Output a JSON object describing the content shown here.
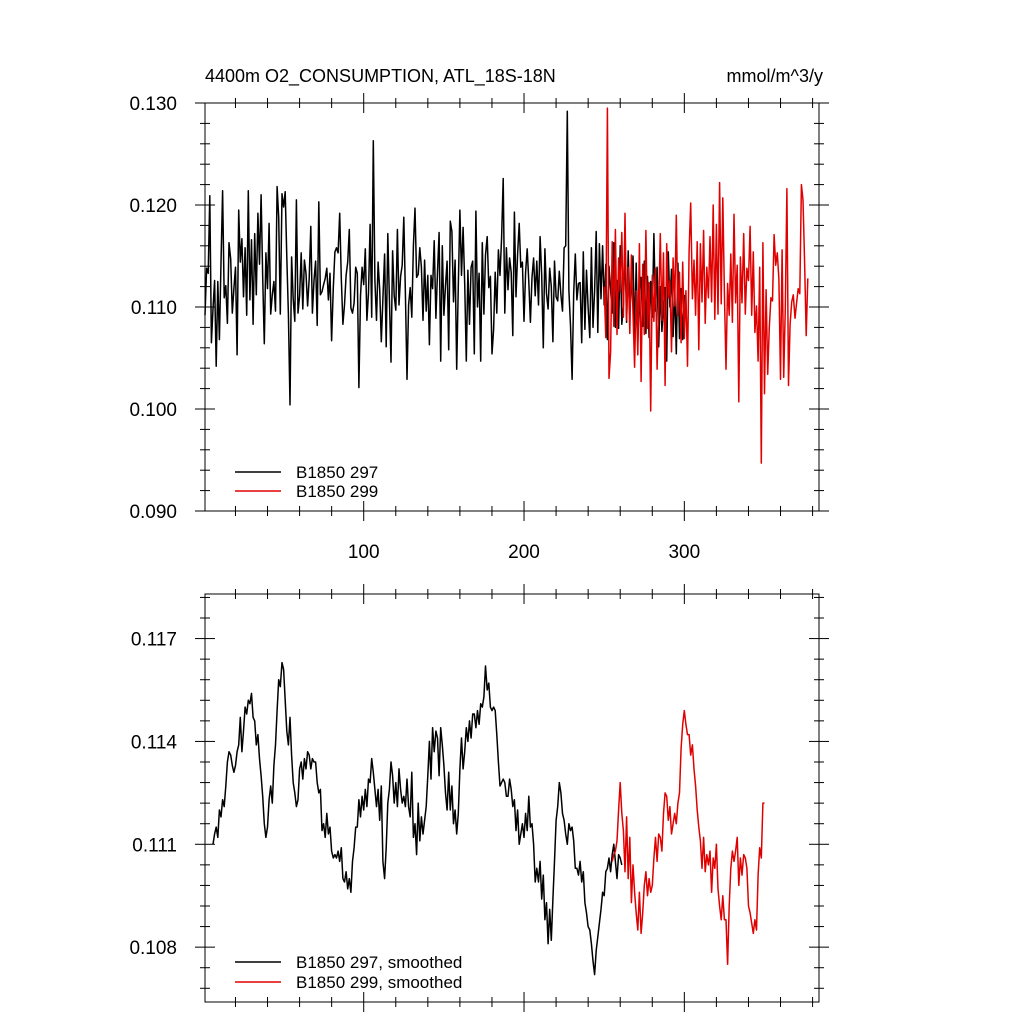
{
  "colors": {
    "series_a": "#000000",
    "series_b": "#e00000",
    "frame": "#000000"
  },
  "chart_data": [
    {
      "type": "line",
      "title": "4400m O2_CONSUMPTION, ATL_18S-18N",
      "units": "mmol/m^3/y",
      "xlabel": "",
      "ylabel": "",
      "xlim": [
        1,
        384
      ],
      "ylim": [
        0.09,
        0.13
      ],
      "xticks": [
        100,
        200,
        300
      ],
      "xtick_labels": [
        "100",
        "200",
        "300"
      ],
      "yticks": [
        0.09,
        0.1,
        0.11,
        0.12,
        0.13
      ],
      "ytick_labels": [
        "0.090",
        "0.100",
        "0.110",
        "0.120",
        "0.130"
      ],
      "grid": false,
      "legend_position": "bottom-left",
      "series": [
        {
          "name": "B1850 297",
          "x_start": 1,
          "x_step": 1,
          "values": [
            0.1092,
            0.1138,
            0.1133,
            0.1209,
            0.1065,
            0.1098,
            0.1126,
            0.1042,
            0.1125,
            0.1068,
            0.1143,
            0.1214,
            0.1109,
            0.1121,
            0.1084,
            0.1163,
            0.1147,
            0.1094,
            0.1118,
            0.1139,
            0.1053,
            0.1195,
            0.1144,
            0.1167,
            0.111,
            0.1158,
            0.1092,
            0.1214,
            0.1107,
            0.1166,
            0.1083,
            0.1172,
            0.1112,
            0.1192,
            0.1142,
            0.121,
            0.1129,
            0.1064,
            0.1153,
            0.1118,
            0.1182,
            0.1093,
            0.1112,
            0.1125,
            0.1096,
            0.1218,
            0.1188,
            0.1093,
            0.1211,
            0.1198,
            0.1213,
            0.1149,
            0.1093,
            0.1004,
            0.1149,
            0.1108,
            0.1086,
            0.1205,
            0.1094,
            0.1111,
            0.1153,
            0.1098,
            0.1146,
            0.1133,
            0.1101,
            0.1128,
            0.1179,
            0.1094,
            0.1126,
            0.1145,
            0.1082,
            0.1203,
            0.1112,
            0.1115,
            0.1122,
            0.1128,
            0.1138,
            0.1107,
            0.1133,
            0.1067,
            0.1119,
            0.1154,
            0.1158,
            0.1153,
            0.1192,
            0.1128,
            0.1083,
            0.1102,
            0.1131,
            0.1144,
            0.1176,
            0.1099,
            0.1094,
            0.1104,
            0.1139,
            0.1133,
            0.1021,
            0.1111,
            0.1139,
            0.1122,
            0.1157,
            0.1087,
            0.1114,
            0.1181,
            0.109,
            0.1263,
            0.1126,
            0.1087,
            0.1144,
            0.1117,
            0.1066,
            0.1108,
            0.1152,
            0.1061,
            0.1172,
            0.1108,
            0.1046,
            0.1155,
            0.1111,
            0.1097,
            0.1176,
            0.1102,
            0.113,
            0.1141,
            0.1188,
            0.1113,
            0.1029,
            0.1102,
            0.1119,
            0.109,
            0.116,
            0.1197,
            0.1129,
            0.1132,
            0.1158,
            0.1139,
            0.1087,
            0.1146,
            0.1096,
            0.1131,
            0.1063,
            0.1131,
            0.1118,
            0.1165,
            0.1089,
            0.1134,
            0.1173,
            0.1047,
            0.116,
            0.1092,
            0.1121,
            0.1145,
            0.1058,
            0.1184,
            0.1174,
            0.1105,
            0.1146,
            0.1039,
            0.1121,
            0.1195,
            0.1131,
            0.1178,
            0.1123,
            0.1047,
            0.1136,
            0.1083,
            0.1139,
            0.1145,
            0.1054,
            0.1194,
            0.11,
            0.1133,
            0.1047,
            0.1163,
            0.1093,
            0.1151,
            0.1169,
            0.1119,
            0.113,
            0.1054,
            0.1078,
            0.1134,
            0.1094,
            0.1156,
            0.1131,
            0.1168,
            0.1226,
            0.1094,
            0.1158,
            0.1117,
            0.1148,
            0.1134,
            0.1072,
            0.1193,
            0.111,
            0.1152,
            0.1182,
            0.1139,
            0.1144,
            0.1086,
            0.1134,
            0.1157,
            0.1125,
            0.1085,
            0.1129,
            0.1148,
            0.1111,
            0.1145,
            0.1102,
            0.1169,
            0.1131,
            0.106,
            0.1157,
            0.1113,
            0.1098,
            0.1138,
            0.112,
            0.1066,
            0.1145,
            0.111,
            0.1106,
            0.1135,
            0.1112,
            0.1096,
            0.1158,
            0.116,
            0.1292,
            0.1116,
            0.1082,
            0.1029,
            0.1114,
            0.1152,
            0.1107,
            0.1123,
            0.1124,
            0.1065,
            0.1154,
            0.1078,
            0.1136,
            0.11,
            0.107,
            0.1158,
            0.108,
            0.1116,
            0.1174,
            0.1075,
            0.1162,
            0.1108,
            0.116,
            0.1102,
            0.1142,
            0.1068,
            0.114,
            0.1117,
            0.1094,
            0.1163,
            0.108,
            0.1126,
            0.1079,
            0.116,
            0.1083,
            0.1102,
            0.1157,
            0.1085,
            0.1155,
            0.11,
            0.1116,
            0.115,
            0.1071,
            0.1143,
            0.1065,
            0.1114,
            0.1129,
            0.1081,
            0.1145,
            0.1074,
            0.113,
            0.107,
            0.1125,
            0.109,
            0.1172,
            0.1096,
            0.1139,
            0.1061,
            0.112,
            0.1076,
            0.1102,
            0.1119,
            0.1047,
            0.1154,
            0.11,
            0.1137,
            0.1071,
            0.1119,
            0.1054,
            0.1143,
            0.1069,
            0.1118,
            0.1068,
            0.1112
          ]
        },
        {
          "name": "B1850 299",
          "x_start": 250,
          "x_step": 1,
          "values": [
            0.112,
            0.107,
            0.1295,
            0.103,
            0.1056,
            0.1164,
            0.1081,
            0.1176,
            0.1073,
            0.1148,
            0.1115,
            0.1173,
            0.109,
            0.1192,
            0.1087,
            0.1139,
            0.1074,
            0.1151,
            0.1094,
            0.1041,
            0.1116,
            0.1053,
            0.1162,
            0.1027,
            0.1142,
            0.1073,
            0.1175,
            0.1079,
            0.1124,
            0.0998,
            0.1131,
            0.1086,
            0.1138,
            0.1039,
            0.1102,
            0.1172,
            0.1087,
            0.1153,
            0.1023,
            0.1162,
            0.1109,
            0.1126,
            0.1056,
            0.1148,
            0.1101,
            0.119,
            0.1092,
            0.1134,
            0.1065,
            0.1144,
            0.1069,
            0.1116,
            0.1042,
            0.1155,
            0.1202,
            0.1108,
            0.1146,
            0.1092,
            0.1164,
            0.1058,
            0.1162,
            0.1105,
            0.1175,
            0.1084,
            0.1139,
            0.1109,
            0.1169,
            0.1105,
            0.12,
            0.1088,
            0.1181,
            0.1093,
            0.1222,
            0.1103,
            0.1207,
            0.1114,
            0.1039,
            0.1123,
            0.1092,
            0.1152,
            0.1085,
            0.1191,
            0.1104,
            0.1141,
            0.1007,
            0.1149,
            0.1104,
            0.1172,
            0.1093,
            0.1138,
            0.1126,
            0.1179,
            0.1092,
            0.1154,
            0.1075,
            0.1101,
            0.1047,
            0.1139,
            0.0947,
            0.1163,
            0.1015,
            0.1117,
            0.1034,
            0.108,
            0.1109,
            0.1106,
            0.1171,
            0.1141,
            0.1153,
            0.1127,
            0.1029,
            0.1156,
            0.1031,
            0.1099,
            0.1216,
            0.1023,
            0.1083,
            0.1105,
            0.1112,
            0.1089,
            0.1104,
            0.1118,
            0.1113,
            0.122,
            0.1205,
            0.1144,
            0.1072,
            0.1128
          ]
        }
      ]
    },
    {
      "type": "line",
      "title": "",
      "xlabel": "",
      "ylabel": "",
      "xlim": [
        1,
        384
      ],
      "ylim": [
        0.1064,
        0.1183
      ],
      "xticks": [
        100,
        200,
        300
      ],
      "yticks": [
        0.108,
        0.111,
        0.114,
        0.117
      ],
      "ytick_labels": [
        "0.108",
        "0.111",
        "0.114",
        "0.117"
      ],
      "grid": false,
      "legend_position": "bottom-left",
      "series": [
        {
          "name": "B1850 297, smoothed",
          "x_start": 6,
          "x_step": 1,
          "values": [
            0.111,
            0.1113,
            0.1115,
            0.1112,
            0.112,
            0.1118,
            0.1123,
            0.1121,
            0.1127,
            0.1134,
            0.1137,
            0.1136,
            0.1133,
            0.1131,
            0.1133,
            0.1137,
            0.1139,
            0.1147,
            0.1137,
            0.1143,
            0.115,
            0.1148,
            0.1152,
            0.1151,
            0.1154,
            0.1147,
            0.1146,
            0.1139,
            0.1142,
            0.1135,
            0.113,
            0.1124,
            0.1116,
            0.1112,
            0.1115,
            0.1123,
            0.1127,
            0.1122,
            0.1133,
            0.1139,
            0.1149,
            0.1158,
            0.1156,
            0.1163,
            0.1161,
            0.1152,
            0.1143,
            0.1139,
            0.1147,
            0.1136,
            0.1128,
            0.1125,
            0.1121,
            0.1123,
            0.1132,
            0.1134,
            0.1129,
            0.1135,
            0.1132,
            0.1137,
            0.1136,
            0.1132,
            0.1135,
            0.1134,
            0.1134,
            0.1128,
            0.1125,
            0.1126,
            0.1114,
            0.1116,
            0.1112,
            0.1119,
            0.1113,
            0.1115,
            0.1108,
            0.1106,
            0.1107,
            0.1106,
            0.1108,
            0.1105,
            0.1109,
            0.11,
            0.1099,
            0.1102,
            0.1097,
            0.11,
            0.1096,
            0.1105,
            0.1109,
            0.1115,
            0.1115,
            0.1123,
            0.1118,
            0.1124,
            0.112,
            0.1126,
            0.1121,
            0.1129,
            0.1128,
            0.1135,
            0.1131,
            0.1126,
            0.1121,
            0.1126,
            0.1117,
            0.1127,
            0.1105,
            0.11,
            0.1109,
            0.1122,
            0.1126,
            0.1134,
            0.113,
            0.1122,
            0.1128,
            0.1121,
            0.1132,
            0.1126,
            0.1122,
            0.1124,
            0.1121,
            0.1129,
            0.1121,
            0.1118,
            0.1131,
            0.1112,
            0.1116,
            0.1107,
            0.1122,
            0.1111,
            0.1118,
            0.1113,
            0.1117,
            0.1121,
            0.113,
            0.114,
            0.1129,
            0.1144,
            0.1137,
            0.1143,
            0.1141,
            0.113,
            0.1144,
            0.1139,
            0.1133,
            0.1125,
            0.112,
            0.1131,
            0.112,
            0.1127,
            0.1116,
            0.112,
            0.1113,
            0.1119,
            0.1132,
            0.1141,
            0.1132,
            0.1137,
            0.1144,
            0.114,
            0.1146,
            0.1141,
            0.1148,
            0.1148,
            0.1144,
            0.1149,
            0.1145,
            0.1151,
            0.115,
            0.1153,
            0.1162,
            0.1155,
            0.1157,
            0.115,
            0.1149,
            0.115,
            0.1149,
            0.1142,
            0.1134,
            0.1127,
            0.1128,
            0.1129,
            0.1128,
            0.1124,
            0.1124,
            0.1129,
            0.1126,
            0.1121,
            0.1123,
            0.1114,
            0.112,
            0.111,
            0.1113,
            0.1116,
            0.1112,
            0.1119,
            0.1114,
            0.1124,
            0.1115,
            0.1116,
            0.111,
            0.1099,
            0.1103,
            0.1099,
            0.1105,
            0.1094,
            0.1101,
            0.1088,
            0.1093,
            0.1081,
            0.1091,
            0.1082,
            0.1094,
            0.1105,
            0.1117,
            0.1121,
            0.1128,
            0.1125,
            0.1119,
            0.1117,
            0.1113,
            0.111,
            0.1116,
            0.1114,
            0.1115,
            0.1111,
            0.1103,
            0.1103,
            0.1101,
            0.1105,
            0.1099,
            0.1102,
            0.1093,
            0.109,
            0.1086,
            0.1085,
            0.1081,
            0.1076,
            0.1072,
            0.1079,
            0.1083,
            0.1087,
            0.1091,
            0.1096,
            0.1095,
            0.1102,
            0.1103,
            0.1106,
            0.1102,
            0.1107,
            0.111,
            0.1105,
            0.11,
            0.1107,
            0.1106,
            0.1104
          ]
        },
        {
          "name": "B1850 299, smoothed",
          "x_start": 255,
          "x_step": 1,
          "values": [
            0.1105,
            0.1107,
            0.1108,
            0.1111,
            0.112,
            0.1128,
            0.1119,
            0.1114,
            0.1102,
            0.1118,
            0.11,
            0.1112,
            0.1093,
            0.1104,
            0.1096,
            0.109,
            0.1085,
            0.1096,
            0.1084,
            0.109,
            0.1098,
            0.1102,
            0.1095,
            0.11,
            0.1096,
            0.1098,
            0.1106,
            0.1112,
            0.1105,
            0.1113,
            0.1112,
            0.1108,
            0.1119,
            0.1125,
            0.1124,
            0.1117,
            0.1121,
            0.1113,
            0.1116,
            0.1119,
            0.1116,
            0.1122,
            0.1125,
            0.1138,
            0.1145,
            0.1149,
            0.1145,
            0.1142,
            0.1142,
            0.1136,
            0.1139,
            0.1132,
            0.1127,
            0.112,
            0.1115,
            0.1111,
            0.1103,
            0.1112,
            0.1102,
            0.1107,
            0.1104,
            0.1108,
            0.1096,
            0.1106,
            0.1103,
            0.111,
            0.1097,
            0.1092,
            0.1088,
            0.1095,
            0.1088,
            0.1088,
            0.1075,
            0.1092,
            0.1103,
            0.1108,
            0.1105,
            0.1108,
            0.1112,
            0.1098,
            0.1106,
            0.1101,
            0.1107,
            0.1106,
            0.1103,
            0.1092,
            0.109,
            0.1087,
            0.1084,
            0.1088,
            0.1085,
            0.1101,
            0.1109,
            0.1106,
            0.1122,
            0.1122
          ]
        }
      ]
    }
  ]
}
